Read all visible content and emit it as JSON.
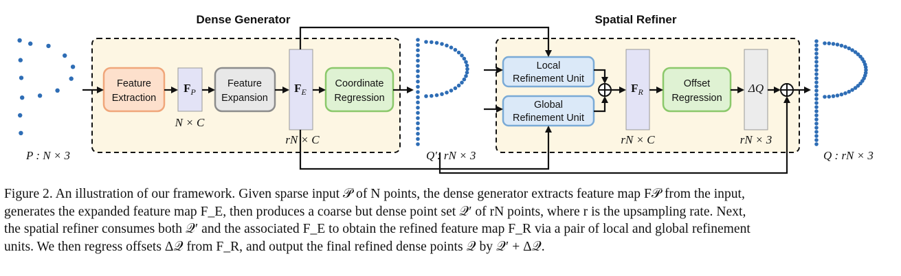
{
  "figure": {
    "titles": {
      "dense_generator": "Dense Generator",
      "spatial_refiner": "Spatial Refiner"
    },
    "boxes": {
      "feature_extraction": [
        "Feature",
        "Extraction"
      ],
      "feature_expansion": [
        "Feature",
        "Expansion"
      ],
      "coordinate_regression": [
        "Coordinate",
        "Regression"
      ],
      "local_refinement": [
        "Local",
        "Refinement Unit"
      ],
      "global_refinement": [
        "Global",
        "Refinement Unit"
      ],
      "offset_regression": [
        "Offset",
        "Regression"
      ]
    },
    "features": {
      "fp": {
        "base": "F",
        "sub": "P"
      },
      "fe": {
        "base": "F",
        "sub": "E"
      },
      "fr": {
        "base": "F",
        "sub": "R"
      },
      "dq": "ΔQ"
    },
    "dims": {
      "fp": "N × C",
      "fe": "rN × C",
      "fr": "rN × C",
      "dq": "rN × 3",
      "input": "P : N × 3",
      "coarse": "Q′: rN × 3",
      "output": "Q : rN × 3"
    },
    "colors": {
      "point": "#2e6db5",
      "dashed_region_fill": "#fdf6e3",
      "extraction_fill": "#fde0cc",
      "extraction_stroke": "#f0a67a",
      "expansion_fill": "#e8e8e8",
      "expansion_stroke": "#8c8c8c",
      "regression_fill": "#dff2d3",
      "regression_stroke": "#8bc86b",
      "refine_fill": "#dbe9f8",
      "refine_stroke": "#7aaad6",
      "fp_bar": "#e3e3f6",
      "grey_bar": "#ececec"
    }
  },
  "caption": {
    "lines": [
      "Figure 2. An illustration of our framework. Given sparse input 𝒫 of N points, the dense generator extracts feature map F𝒫 from the input,",
      "generates the expanded feature map F_E, then produces a coarse but dense point set 𝒬′ of rN points, where r is the upsampling rate. Next,",
      "the spatial refiner consumes both 𝒬′ and the associated F_E to obtain the refined feature map F_R via a pair of local and global refinement",
      "units. We then regress offsets Δ𝒬 from F_R, and output the final refined dense points 𝒬 by 𝒬′ + Δ𝒬."
    ]
  }
}
